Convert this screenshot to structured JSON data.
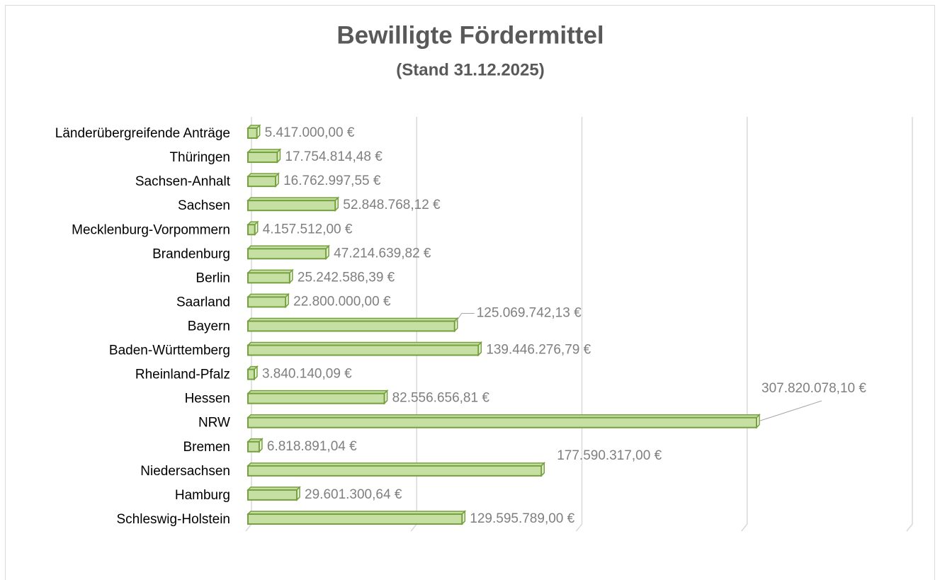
{
  "chart_data": {
    "type": "bar",
    "orientation": "horizontal",
    "title": "Bewilligte Fördermittel",
    "subtitle": "(Stand 31.12.2025)",
    "categories": [
      "Länderübergreifende Anträge",
      "Thüringen",
      "Sachsen-Anhalt",
      "Sachsen",
      "Mecklenburg-Vorpommern",
      "Brandenburg",
      "Berlin",
      "Saarland",
      "Bayern",
      "Baden-Württemberg",
      "Rheinland-Pfalz",
      "Hessen",
      "NRW",
      "Bremen",
      "Niedersachsen",
      "Hamburg",
      "Schleswig-Holstein"
    ],
    "values": [
      5417000.0,
      17754814.48,
      16762997.55,
      52848768.12,
      4157512.0,
      47214639.82,
      25242586.39,
      22800000.0,
      125069742.13,
      139446276.79,
      3840140.09,
      82556656.81,
      307820078.1,
      6818891.04,
      177590317.0,
      29601300.64,
      129595789.0
    ],
    "value_labels": [
      "5.417.000,00 €",
      "17.754.814,48 €",
      "16.762.997,55 €",
      "52.848.768,12 €",
      "4.157.512,00 €",
      "47.214.639,82 €",
      "25.242.586,39 €",
      "22.800.000,00 €",
      "125.069.742,13 €",
      "139.446.276,79 €",
      "3.840.140,09 €",
      "82.556.656,81 €",
      "307.820.078,10 €",
      "6.818.891,04 €",
      "177.590.317,00 €",
      "29.601.300,64 €",
      "129.595.789,00 €"
    ],
    "color": "#c6e0a4",
    "edge_color": "#76a03e",
    "xlim": [
      0,
      400000000
    ],
    "xticks": [
      0,
      100000000,
      200000000,
      300000000,
      400000000
    ],
    "grid": true
  }
}
